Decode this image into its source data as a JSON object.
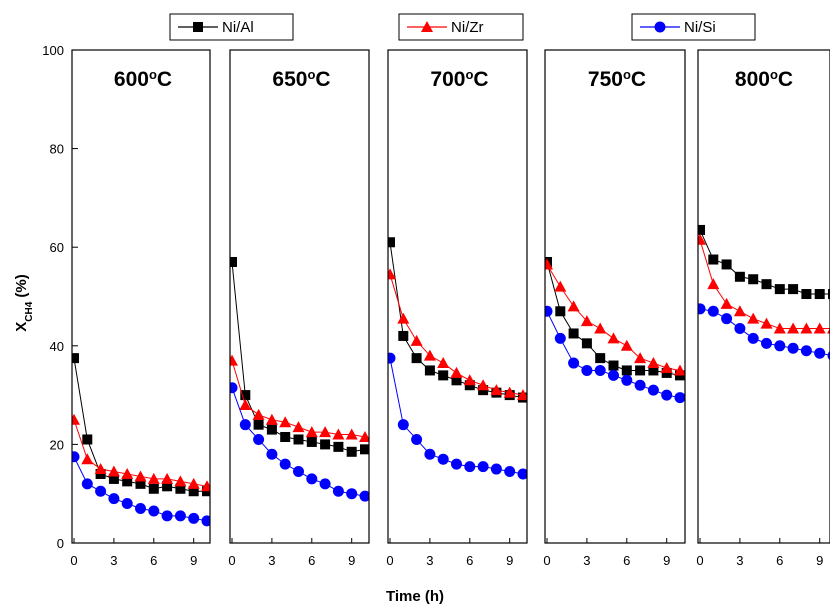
{
  "chart_data": {
    "type": "scatter",
    "ylabel_main": "X",
    "ylabel_sub": "CH4",
    "ylabel_unit": " (%)",
    "xlabel": "Time (h)",
    "ylim": [
      0,
      100
    ],
    "yticks": [
      0,
      20,
      40,
      60,
      80,
      100
    ],
    "xlim": [
      0,
      10
    ],
    "xticks": [
      0,
      3,
      6,
      9
    ],
    "colors": {
      "Ni/Al": "#000000",
      "Ni/Zr": "#ff0000",
      "Ni/Si": "#0000ff"
    },
    "legend": [
      {
        "name": "Ni/Al",
        "marker": "square",
        "color": "#000000"
      },
      {
        "name": "Ni/Zr",
        "marker": "triangle",
        "color": "#ff0000"
      },
      {
        "name": "Ni/Si",
        "marker": "circle",
        "color": "#0000ff"
      }
    ],
    "panels": [
      {
        "title_num": "600",
        "title_deg": "o",
        "title_unit": "C",
        "series": [
          {
            "name": "Ni/Al",
            "x": [
              0,
              1,
              2,
              3,
              4,
              5,
              6,
              7,
              8,
              9,
              10
            ],
            "y": [
              37.5,
              21,
              14,
              13,
              12.5,
              12,
              11,
              11.5,
              11,
              10.5,
              10.5
            ]
          },
          {
            "name": "Ni/Zr",
            "x": [
              0,
              1,
              2,
              3,
              4,
              5,
              6,
              7,
              8,
              9,
              10
            ],
            "y": [
              25,
              17,
              15,
              14.5,
              14,
              13.5,
              13,
              13,
              12.5,
              12,
              11.5
            ]
          },
          {
            "name": "Ni/Si",
            "x": [
              0,
              1,
              2,
              3,
              4,
              5,
              6,
              7,
              8,
              9,
              10
            ],
            "y": [
              17.5,
              12,
              10.5,
              9,
              8,
              7,
              6.5,
              5.5,
              5.5,
              5,
              4.5
            ]
          }
        ]
      },
      {
        "title_num": "650",
        "title_deg": "o",
        "title_unit": "C",
        "series": [
          {
            "name": "Ni/Al",
            "x": [
              0,
              1,
              2,
              3,
              4,
              5,
              6,
              7,
              8,
              9,
              10
            ],
            "y": [
              57,
              30,
              24,
              23,
              21.5,
              21,
              20.5,
              20,
              19.5,
              18.5,
              19
            ]
          },
          {
            "name": "Ni/Zr",
            "x": [
              0,
              1,
              2,
              3,
              4,
              5,
              6,
              7,
              8,
              9,
              10
            ],
            "y": [
              37,
              28,
              26,
              25,
              24.5,
              23.5,
              22.5,
              22.5,
              22,
              22,
              21.5
            ]
          },
          {
            "name": "Ni/Si",
            "x": [
              0,
              1,
              2,
              3,
              4,
              5,
              6,
              7,
              8,
              9,
              10
            ],
            "y": [
              31.5,
              24,
              21,
              18,
              16,
              14.5,
              13,
              12,
              10.5,
              10,
              9.5
            ]
          }
        ]
      },
      {
        "title_num": "700",
        "title_deg": "o",
        "title_unit": "C",
        "series": [
          {
            "name": "Ni/Al",
            "x": [
              0,
              1,
              2,
              3,
              4,
              5,
              6,
              7,
              8,
              9,
              10
            ],
            "y": [
              61,
              42,
              37.5,
              35,
              34,
              33,
              32,
              31,
              30.5,
              30,
              29.5
            ]
          },
          {
            "name": "Ni/Zr",
            "x": [
              0,
              1,
              2,
              3,
              4,
              5,
              6,
              7,
              8,
              9,
              10
            ],
            "y": [
              54.5,
              45.5,
              41,
              38,
              36.5,
              34.5,
              33,
              32,
              31,
              30.5,
              30
            ]
          },
          {
            "name": "Ni/Si",
            "x": [
              0,
              1,
              2,
              3,
              4,
              5,
              6,
              7,
              8,
              9,
              10
            ],
            "y": [
              37.5,
              24,
              21,
              18,
              17,
              16,
              15.5,
              15.5,
              15,
              14.5,
              14
            ]
          }
        ]
      },
      {
        "title_num": "750",
        "title_deg": "o",
        "title_unit": "C",
        "series": [
          {
            "name": "Ni/Al",
            "x": [
              0,
              1,
              2,
              3,
              4,
              5,
              6,
              7,
              8,
              9,
              10
            ],
            "y": [
              57,
              47,
              42.5,
              40.5,
              37.5,
              36,
              35,
              35,
              35,
              34.5,
              34
            ]
          },
          {
            "name": "Ni/Zr",
            "x": [
              0,
              1,
              2,
              3,
              4,
              5,
              6,
              7,
              8,
              9,
              10
            ],
            "y": [
              56.5,
              52,
              48,
              45,
              43.5,
              41.5,
              40,
              37.5,
              36.5,
              35.5,
              35
            ]
          },
          {
            "name": "Ni/Si",
            "x": [
              0,
              1,
              2,
              3,
              4,
              5,
              6,
              7,
              8,
              9,
              10
            ],
            "y": [
              47,
              41.5,
              36.5,
              35,
              35,
              34,
              33,
              32,
              31,
              30,
              29.5
            ]
          }
        ]
      },
      {
        "title_num": "800",
        "title_deg": "o",
        "title_unit": "C",
        "series": [
          {
            "name": "Ni/Al",
            "x": [
              0,
              1,
              2,
              3,
              4,
              5,
              6,
              7,
              8,
              9,
              10
            ],
            "y": [
              63.5,
              57.5,
              56.5,
              54,
              53.5,
              52.5,
              51.5,
              51.5,
              50.5,
              50.5,
              50.5
            ]
          },
          {
            "name": "Ni/Zr",
            "x": [
              0,
              1,
              2,
              3,
              4,
              5,
              6,
              7,
              8,
              9,
              10
            ],
            "y": [
              61.5,
              52.5,
              48.5,
              47,
              45.5,
              44.5,
              43.5,
              43.5,
              43.5,
              43.5,
              43.5
            ]
          },
          {
            "name": "Ni/Si",
            "x": [
              0,
              1,
              2,
              3,
              4,
              5,
              6,
              7,
              8,
              9,
              10
            ],
            "y": [
              47.5,
              47,
              45.5,
              43.5,
              41.5,
              40.5,
              40,
              39.5,
              39,
              38.5,
              38
            ]
          }
        ]
      }
    ]
  }
}
